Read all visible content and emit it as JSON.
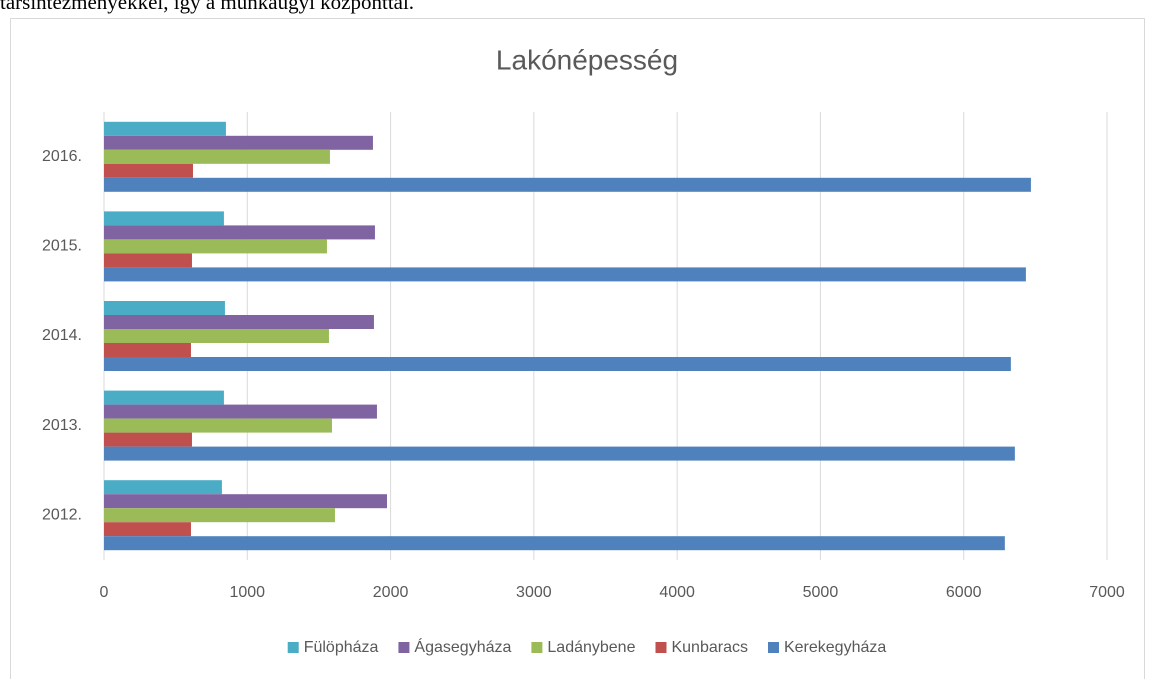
{
  "document_text": "társintézményekkel, így a munkaügyi központtal.",
  "chart_data": {
    "type": "bar",
    "orientation": "horizontal",
    "title": "Lakónépesség",
    "categories": [
      "2012.",
      "2013.",
      "2014.",
      "2015.",
      "2016."
    ],
    "series": [
      {
        "name": "Fülöpháza",
        "color": "#4bacc6",
        "values": [
          823,
          837,
          844,
          837,
          851
        ]
      },
      {
        "name": "Ágasegyháza",
        "color": "#8064a2",
        "values": [
          1975,
          1905,
          1884,
          1891,
          1877
        ]
      },
      {
        "name": "Ladánybene",
        "color": "#9bbb59",
        "values": [
          1612,
          1591,
          1570,
          1556,
          1577
        ]
      },
      {
        "name": "Kunbaracs",
        "color": "#c0504d",
        "values": [
          607,
          614,
          607,
          614,
          621
        ]
      },
      {
        "name": "Kerekegyháza",
        "color": "#4f81bd",
        "values": [
          6287,
          6357,
          6329,
          6434,
          6469
        ]
      }
    ],
    "xlim": [
      0,
      7000
    ],
    "xticks": [
      0,
      1000,
      2000,
      3000,
      4000,
      5000,
      6000,
      7000
    ],
    "grid": true,
    "legend": "bottom"
  }
}
